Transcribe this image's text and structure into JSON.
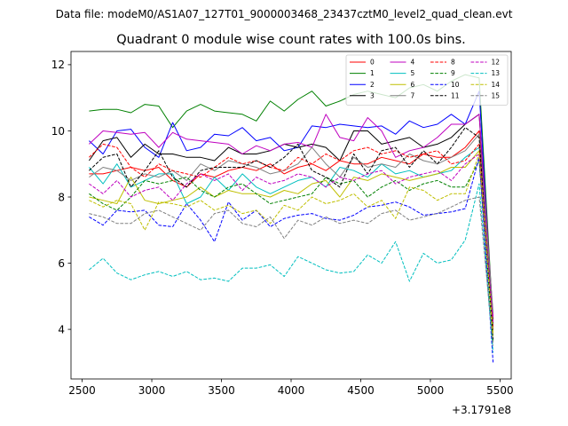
{
  "figure": {
    "suptitle": "Data file: modeM0/AS1A07_127T01_9000003468_23437cztM0_level2_quad_clean.evt"
  },
  "chart_data": {
    "type": "line",
    "title": "Quadrant 0 module wise count rates with 100.0s bins.",
    "xlabel": "",
    "ylabel": "",
    "x_offset_label": "+3.1791e8",
    "xlim": [
      2420,
      5580
    ],
    "ylim": [
      2.5,
      12.4
    ],
    "x_ticks": [
      2500,
      3000,
      3500,
      4000,
      4500,
      5000,
      5500
    ],
    "y_ticks": [
      4,
      6,
      8,
      10,
      12
    ],
    "grid": false,
    "legend_position": "top-right",
    "legend_columns": 4,
    "x": [
      2550,
      2650,
      2750,
      2850,
      2950,
      3050,
      3150,
      3250,
      3350,
      3450,
      3550,
      3650,
      3750,
      3850,
      3950,
      4050,
      4150,
      4250,
      4350,
      4450,
      4550,
      4650,
      4750,
      4850,
      4950,
      5050,
      5150,
      5250,
      5350,
      5450
    ],
    "series": [
      {
        "name": "0",
        "color": "#ff0000",
        "dash": "solid",
        "values": [
          8.7,
          8.7,
          8.8,
          8.9,
          8.8,
          8.9,
          8.5,
          8.3,
          8.7,
          8.6,
          8.8,
          8.9,
          8.8,
          9.0,
          8.7,
          8.9,
          9.0,
          8.8,
          9.1,
          9.0,
          9.0,
          9.2,
          9.1,
          9.0,
          9.3,
          9.2,
          9.2,
          9.5,
          10.0,
          4.3
        ]
      },
      {
        "name": "1",
        "color": "#008000",
        "dash": "solid",
        "values": [
          10.6,
          10.65,
          10.65,
          10.55,
          10.8,
          10.75,
          10.1,
          10.6,
          10.8,
          10.6,
          10.55,
          10.5,
          10.3,
          10.9,
          10.6,
          10.95,
          11.2,
          10.75,
          10.9,
          11.1,
          11.2,
          11.1,
          11.0,
          11.3,
          11.4,
          11.2,
          11.5,
          11.7,
          11.6,
          4.2
        ]
      },
      {
        "name": "2",
        "color": "#0000ff",
        "dash": "solid",
        "values": [
          9.7,
          9.3,
          10.0,
          10.05,
          9.5,
          9.2,
          10.25,
          9.4,
          9.5,
          9.9,
          9.85,
          10.1,
          9.7,
          9.8,
          9.4,
          9.5,
          10.15,
          10.1,
          10.2,
          10.15,
          10.1,
          10.15,
          9.9,
          10.3,
          10.1,
          10.2,
          10.5,
          10.2,
          11.2,
          4.0
        ]
      },
      {
        "name": "3",
        "color": "#000000",
        "dash": "solid",
        "values": [
          9.1,
          9.7,
          9.8,
          9.2,
          9.6,
          9.3,
          9.3,
          9.2,
          9.2,
          9.1,
          9.5,
          9.3,
          9.3,
          9.4,
          9.6,
          9.5,
          9.6,
          9.5,
          9.1,
          10.0,
          10.0,
          9.6,
          9.7,
          9.8,
          9.5,
          9.6,
          9.8,
          10.2,
          10.5,
          4.1
        ]
      },
      {
        "name": "4",
        "color": "#bf00bf",
        "dash": "solid",
        "values": [
          9.6,
          10.0,
          9.95,
          9.9,
          9.95,
          9.5,
          9.95,
          9.75,
          9.7,
          9.65,
          9.6,
          9.3,
          9.55,
          9.4,
          9.6,
          9.65,
          9.5,
          10.5,
          9.8,
          9.7,
          10.4,
          10.0,
          9.2,
          9.4,
          9.5,
          9.8,
          10.2,
          10.2,
          10.5,
          4.4
        ]
      },
      {
        "name": "5",
        "color": "#00bfbf",
        "dash": "solid",
        "values": [
          8.9,
          8.4,
          9.0,
          8.3,
          8.5,
          8.7,
          8.7,
          7.8,
          8.0,
          8.6,
          8.2,
          8.7,
          8.3,
          8.1,
          8.3,
          8.5,
          8.6,
          8.3,
          8.9,
          8.8,
          8.6,
          9.0,
          8.7,
          8.8,
          8.6,
          8.7,
          8.8,
          9.2,
          9.5,
          4.0
        ]
      },
      {
        "name": "6",
        "color": "#bfbf00",
        "dash": "solid",
        "values": [
          8.0,
          7.9,
          7.8,
          8.6,
          7.9,
          7.8,
          7.9,
          8.0,
          8.3,
          8.0,
          8.2,
          8.1,
          8.1,
          8.0,
          8.2,
          8.1,
          8.4,
          8.5,
          8.0,
          8.6,
          8.5,
          8.7,
          8.6,
          8.5,
          8.6,
          8.7,
          8.9,
          8.9,
          9.4,
          3.9
        ]
      },
      {
        "name": "7",
        "color": "#808080",
        "dash": "solid",
        "values": [
          8.6,
          8.9,
          8.8,
          8.5,
          8.7,
          8.6,
          8.8,
          8.5,
          9.0,
          8.8,
          9.1,
          9.0,
          8.9,
          8.7,
          8.8,
          9.0,
          9.5,
          9.0,
          8.6,
          9.2,
          8.9,
          9.0,
          8.9,
          9.3,
          9.1,
          9.0,
          9.2,
          9.4,
          9.9,
          4.5
        ]
      },
      {
        "name": "8",
        "color": "#ff0000",
        "dash": "dashed",
        "values": [
          9.2,
          9.6,
          9.5,
          8.9,
          8.6,
          9.0,
          8.8,
          8.7,
          8.6,
          8.9,
          9.2,
          9.0,
          9.1,
          8.9,
          8.8,
          9.2,
          9.0,
          9.3,
          9.1,
          9.4,
          9.5,
          9.3,
          9.4,
          9.2,
          9.3,
          9.4,
          9.0,
          9.1,
          9.6,
          4.0
        ]
      },
      {
        "name": "9",
        "color": "#008000",
        "dash": "dashed",
        "values": [
          8.1,
          7.8,
          7.6,
          8.0,
          8.5,
          8.4,
          8.5,
          8.6,
          8.2,
          8.0,
          8.3,
          8.4,
          8.1,
          7.8,
          7.9,
          8.0,
          8.1,
          8.6,
          8.4,
          8.5,
          8.0,
          8.3,
          8.5,
          8.2,
          8.4,
          8.5,
          8.3,
          8.3,
          9.1,
          3.6
        ]
      },
      {
        "name": "10",
        "color": "#0000ff",
        "dash": "dashed",
        "values": [
          7.4,
          7.15,
          7.6,
          7.55,
          7.6,
          7.15,
          7.1,
          7.8,
          7.3,
          6.65,
          7.85,
          7.3,
          7.6,
          7.1,
          7.35,
          7.45,
          7.5,
          7.35,
          7.3,
          7.45,
          7.7,
          7.75,
          7.85,
          7.7,
          7.45,
          7.5,
          7.55,
          7.65,
          9.2,
          3.0
        ]
      },
      {
        "name": "11",
        "color": "#000000",
        "dash": "dashed",
        "values": [
          8.8,
          9.2,
          9.3,
          8.3,
          8.8,
          9.4,
          8.6,
          8.3,
          8.8,
          8.9,
          8.9,
          8.9,
          9.1,
          8.9,
          9.2,
          9.6,
          8.8,
          8.6,
          8.3,
          9.3,
          8.7,
          9.4,
          9.5,
          8.9,
          9.4,
          9.0,
          9.5,
          10.1,
          9.8,
          3.7
        ]
      },
      {
        "name": "12",
        "color": "#bf00bf",
        "dash": "dashed",
        "values": [
          8.4,
          8.1,
          8.5,
          8.0,
          8.2,
          8.3,
          7.9,
          8.4,
          8.7,
          8.5,
          8.7,
          8.2,
          8.6,
          8.4,
          8.5,
          8.7,
          8.6,
          8.3,
          8.6,
          8.5,
          8.7,
          8.8,
          8.4,
          8.6,
          8.7,
          8.8,
          8.5,
          9.0,
          9.3,
          4.2
        ]
      },
      {
        "name": "13",
        "color": "#00bfbf",
        "dash": "dashed",
        "values": [
          5.8,
          6.15,
          5.7,
          5.5,
          5.65,
          5.75,
          5.6,
          5.75,
          5.5,
          5.55,
          5.45,
          5.85,
          5.85,
          5.95,
          5.6,
          6.2,
          6.0,
          5.8,
          5.7,
          5.75,
          6.25,
          6.0,
          6.65,
          5.45,
          6.3,
          6.0,
          6.1,
          6.7,
          8.4,
          3.3
        ]
      },
      {
        "name": "14",
        "color": "#bfbf00",
        "dash": "dashed",
        "values": [
          7.9,
          7.7,
          7.9,
          7.8,
          7.0,
          7.85,
          7.8,
          7.7,
          7.9,
          7.6,
          7.75,
          7.5,
          7.6,
          7.2,
          7.75,
          7.6,
          8.0,
          7.8,
          7.9,
          8.1,
          7.7,
          7.9,
          7.35,
          8.3,
          8.2,
          7.9,
          8.1,
          8.1,
          9.3,
          3.8
        ]
      },
      {
        "name": "15",
        "color": "#808080",
        "dash": "dashed",
        "values": [
          7.5,
          7.4,
          7.2,
          7.2,
          7.5,
          7.6,
          7.4,
          7.2,
          7.0,
          7.5,
          7.6,
          7.2,
          7.1,
          7.4,
          6.75,
          7.3,
          7.15,
          7.4,
          7.2,
          7.3,
          7.2,
          7.5,
          7.6,
          7.3,
          7.4,
          7.5,
          7.7,
          7.9,
          8.0,
          3.5
        ]
      }
    ]
  }
}
